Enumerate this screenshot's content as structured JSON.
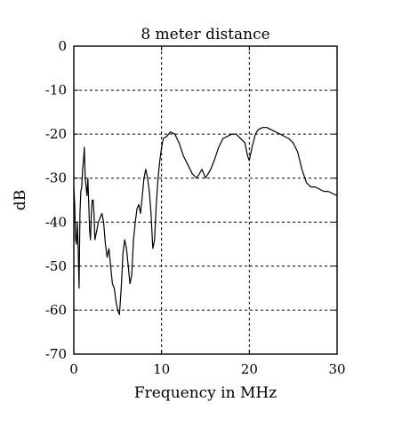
{
  "chart_data": {
    "type": "line",
    "title": "8 meter distance",
    "xlabel": "Frequency in MHz",
    "ylabel": "dB",
    "xlim": [
      0,
      30
    ],
    "ylim": [
      -70,
      0
    ],
    "x_ticks": [
      0,
      10,
      20,
      30
    ],
    "y_ticks": [
      0,
      -10,
      -20,
      -30,
      -40,
      -50,
      -60,
      -70
    ],
    "grid": true,
    "grid_style": "dashed",
    "series": [
      {
        "color": "#000000",
        "x": [
          0.0,
          0.1,
          0.2,
          0.3,
          0.4,
          0.5,
          0.6,
          0.7,
          0.8,
          0.9,
          1.0,
          1.1,
          1.2,
          1.3,
          1.4,
          1.5,
          1.6,
          1.7,
          1.8,
          1.9,
          2.0,
          2.1,
          2.2,
          2.3,
          2.4,
          2.6,
          2.8,
          3.0,
          3.2,
          3.4,
          3.6,
          3.8,
          4.0,
          4.2,
          4.4,
          4.6,
          4.8,
          5.0,
          5.2,
          5.4,
          5.6,
          5.8,
          6.0,
          6.2,
          6.4,
          6.6,
          6.8,
          7.0,
          7.2,
          7.4,
          7.6,
          7.8,
          8.0,
          8.2,
          8.4,
          8.6,
          8.8,
          9.0,
          9.2,
          9.4,
          9.6,
          9.8,
          10.0,
          10.2,
          10.6,
          11.0,
          11.5,
          12.0,
          12.5,
          13.0,
          13.5,
          14.0,
          14.3,
          14.6,
          15.0,
          15.3,
          15.6,
          16.0,
          16.5,
          17.0,
          17.5,
          18.0,
          18.5,
          19.0,
          19.5,
          19.8,
          20.0,
          20.3,
          20.7,
          21.0,
          21.5,
          22.0,
          22.5,
          23.0,
          23.5,
          24.0,
          24.5,
          25.0,
          25.5,
          26.0,
          26.5,
          27.0,
          27.5,
          28.0,
          28.5,
          29.0,
          29.5,
          30.0
        ],
        "y": [
          -32,
          -36,
          -44,
          -45,
          -40,
          -46,
          -55,
          -38,
          -33,
          -32,
          -28,
          -26,
          -23,
          -30,
          -32,
          -34,
          -30,
          -36,
          -42,
          -44,
          -38,
          -35,
          -35,
          -38,
          -44,
          -42,
          -40,
          -39,
          -38,
          -40,
          -45,
          -48,
          -46,
          -50,
          -54,
          -55,
          -58,
          -60,
          -61,
          -55,
          -47,
          -44,
          -46,
          -50,
          -54,
          -52,
          -44,
          -40,
          -37,
          -36,
          -38,
          -34,
          -30,
          -28,
          -30,
          -33,
          -38,
          -46,
          -44,
          -36,
          -30,
          -26,
          -23,
          -21,
          -20.5,
          -19.5,
          -20,
          -22,
          -25,
          -27,
          -29,
          -30,
          -29,
          -28,
          -30,
          -29,
          -28,
          -26,
          -23,
          -21,
          -20.5,
          -20,
          -20,
          -21,
          -22,
          -25,
          -26,
          -23,
          -20,
          -19,
          -18.5,
          -18.5,
          -19,
          -19.5,
          -20,
          -20.5,
          -21,
          -22,
          -24,
          -28,
          -31,
          -32,
          -32,
          -32.5,
          -33,
          -33,
          -33.5,
          -34
        ]
      }
    ]
  }
}
